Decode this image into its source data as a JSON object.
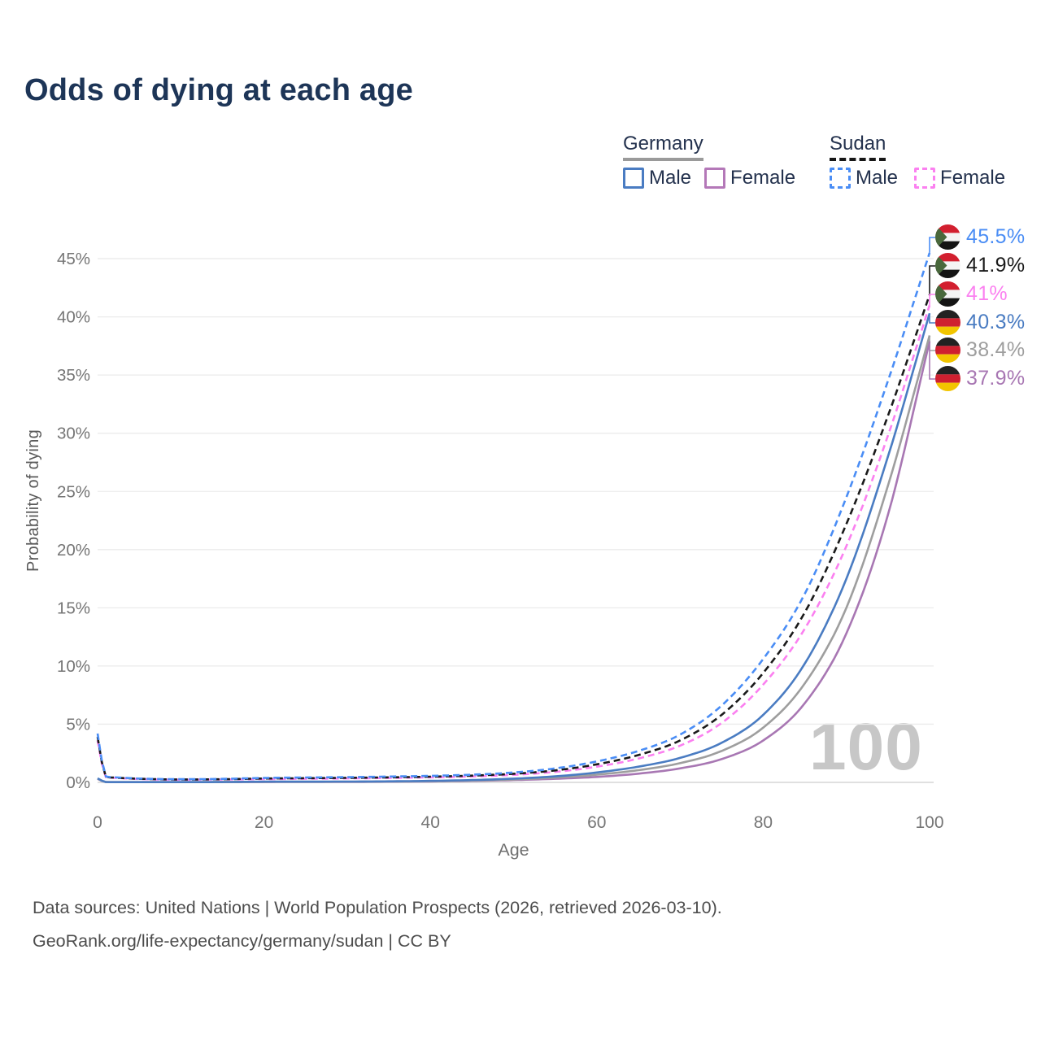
{
  "title": "Odds of dying at each age",
  "legend": {
    "germany": {
      "label": "Germany",
      "male": "Male",
      "female": "Female"
    },
    "sudan": {
      "label": "Sudan",
      "male": "Male",
      "female": "Female"
    }
  },
  "watermark": "100",
  "axes": {
    "y_title": "Probability of dying",
    "x_title": "Age"
  },
  "footer": {
    "line1": "Data sources: United Nations | World Population Prospects (2026, retrieved 2026-03-10).",
    "line2": "GeoRank.org/life-expectancy/germany/sudan | CC BY"
  },
  "chart_data": {
    "type": "line",
    "title": "Odds of dying at each age",
    "xlabel": "Age",
    "ylabel": "Probability of dying",
    "xlim": [
      0,
      100
    ],
    "ylim_percent": [
      0,
      47
    ],
    "grid": "horizontal",
    "x_ticks": [
      0,
      20,
      40,
      60,
      80,
      100
    ],
    "x_tick_labels": [
      "0",
      "20",
      "40",
      "60",
      "80",
      "100"
    ],
    "y_ticks_percent": [
      0,
      5,
      10,
      15,
      20,
      25,
      30,
      35,
      40,
      45
    ],
    "y_tick_labels": [
      "0%",
      "5%",
      "10%",
      "15%",
      "20%",
      "25%",
      "30%",
      "35%",
      "40%",
      "45%"
    ],
    "legend_position": "top-right",
    "ages": [
      0,
      1,
      2,
      3,
      4,
      5,
      10,
      15,
      20,
      25,
      30,
      35,
      40,
      45,
      50,
      55,
      60,
      65,
      70,
      75,
      80,
      85,
      90,
      95,
      100
    ],
    "series": [
      {
        "id": "germany_female",
        "name": "Germany Female",
        "country": "Germany",
        "sex": "Female",
        "color": "#a877b3",
        "dash": false,
        "flag": "germany",
        "end_label": "37.9%",
        "values": [
          0.3,
          0.025,
          0.016,
          0.013,
          0.012,
          0.011,
          0.01,
          0.02,
          0.03,
          0.035,
          0.04,
          0.055,
          0.08,
          0.13,
          0.2,
          0.31,
          0.47,
          0.75,
          1.2,
          2.0,
          3.6,
          6.8,
          12.8,
          23.0,
          37.9
        ]
      },
      {
        "id": "germany_both",
        "name": "Germany",
        "country": "Germany",
        "sex": "Both",
        "color": "#9e9e9e",
        "dash": false,
        "flag": "germany",
        "end_label": "38.4%",
        "values": [
          0.32,
          0.027,
          0.018,
          0.014,
          0.013,
          0.012,
          0.011,
          0.025,
          0.045,
          0.05,
          0.055,
          0.07,
          0.1,
          0.16,
          0.25,
          0.41,
          0.66,
          1.05,
          1.65,
          2.7,
          4.7,
          8.5,
          15.0,
          25.5,
          38.4
        ]
      },
      {
        "id": "germany_male",
        "name": "Germany Male",
        "country": "Germany",
        "sex": "Male",
        "color": "#4a7cc2",
        "dash": false,
        "flag": "germany",
        "end_label": "40.3%",
        "values": [
          0.35,
          0.03,
          0.02,
          0.016,
          0.014,
          0.013,
          0.012,
          0.03,
          0.06,
          0.065,
          0.07,
          0.09,
          0.13,
          0.2,
          0.32,
          0.52,
          0.85,
          1.35,
          2.1,
          3.4,
          5.8,
          10.2,
          17.5,
          28.0,
          40.3
        ]
      },
      {
        "id": "sudan_female",
        "name": "Sudan Female",
        "country": "Sudan",
        "sex": "Female",
        "color": "#fb80f0",
        "dash": true,
        "flag": "sudan",
        "end_label": "41%",
        "values": [
          3.6,
          0.44,
          0.39,
          0.35,
          0.32,
          0.29,
          0.23,
          0.25,
          0.28,
          0.31,
          0.34,
          0.38,
          0.43,
          0.51,
          0.65,
          0.9,
          1.35,
          2.05,
          3.15,
          5.1,
          8.4,
          13.2,
          20.3,
          29.8,
          41.0
        ]
      },
      {
        "id": "sudan_both",
        "name": "Sudan",
        "country": "Sudan",
        "sex": "Both",
        "color": "#1a1a1a",
        "dash": true,
        "flag": "sudan",
        "end_label": "41.9%",
        "values": [
          3.9,
          0.47,
          0.41,
          0.37,
          0.34,
          0.31,
          0.25,
          0.27,
          0.33,
          0.36,
          0.39,
          0.43,
          0.49,
          0.58,
          0.74,
          1.03,
          1.55,
          2.35,
          3.6,
          5.8,
          9.4,
          14.6,
          22.2,
          31.5,
          41.9
        ]
      },
      {
        "id": "sudan_male",
        "name": "Sudan Male",
        "country": "Sudan",
        "sex": "Male",
        "color": "#4a8df5",
        "dash": true,
        "flag": "sudan",
        "end_label": "45.5%",
        "values": [
          4.2,
          0.5,
          0.44,
          0.4,
          0.36,
          0.33,
          0.27,
          0.3,
          0.38,
          0.42,
          0.45,
          0.5,
          0.56,
          0.66,
          0.85,
          1.2,
          1.8,
          2.7,
          4.1,
          6.6,
          10.6,
          16.2,
          24.5,
          34.5,
          45.5
        ]
      }
    ],
    "end_labels_order": [
      "sudan_male",
      "sudan_both",
      "sudan_female",
      "germany_male",
      "germany_both",
      "germany_female"
    ],
    "flag_colors": {
      "sudan_red": "#d21f2f",
      "sudan_white": "#f4f4f4",
      "sudan_black": "#141414",
      "sudan_green": "#49683c",
      "germany_black": "#222222",
      "germany_red": "#cf2030",
      "germany_gold": "#f2c500"
    }
  }
}
